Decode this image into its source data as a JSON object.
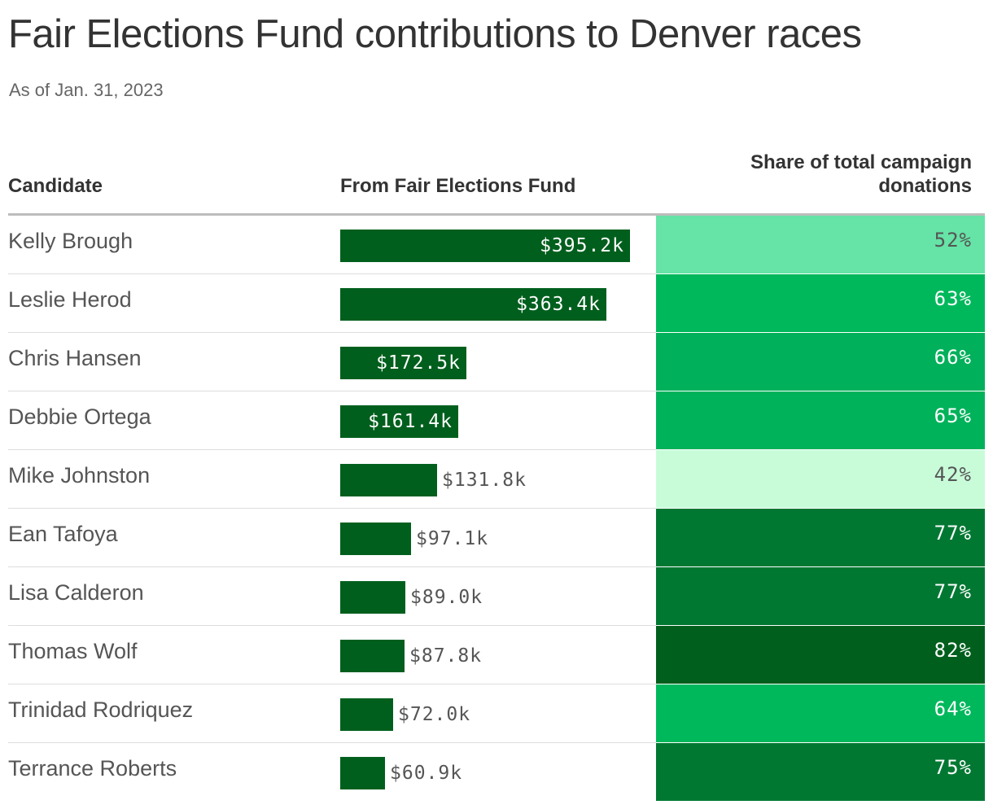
{
  "title": "Fair Elections Fund contributions to Denver races",
  "subtitle": "As of Jan. 31, 2023",
  "columns": {
    "candidate": "Candidate",
    "fund": "From Fair Elections Fund",
    "share_line1": "Share of total campaign",
    "share_line2": "donations"
  },
  "chart_data": {
    "type": "table",
    "title": "Fair Elections Fund contributions to Denver races",
    "subtitle": "As of Jan. 31, 2023",
    "columns": [
      "Candidate",
      "From Fair Elections Fund",
      "Share of total campaign donations"
    ],
    "bar_color": "#005f1d",
    "rows": [
      {
        "candidate": "Kelly Brough",
        "fund": 395.2,
        "fund_label": "$395.2k",
        "share": 52,
        "share_label": "52%",
        "share_color": "#66e3a6",
        "share_text_color": "#555555"
      },
      {
        "candidate": "Leslie Herod",
        "fund": 363.4,
        "fund_label": "$363.4k",
        "share": 63,
        "share_label": "63%",
        "share_color": "#00b85c",
        "share_text_color": "#ffffff"
      },
      {
        "candidate": "Chris Hansen",
        "fund": 172.5,
        "fund_label": "$172.5k",
        "share": 66,
        "share_label": "66%",
        "share_color": "#00b05a",
        "share_text_color": "#ffffff"
      },
      {
        "candidate": "Debbie Ortega",
        "fund": 161.4,
        "fund_label": "$161.4k",
        "share": 65,
        "share_label": "65%",
        "share_color": "#00b25a",
        "share_text_color": "#ffffff"
      },
      {
        "candidate": "Mike Johnston",
        "fund": 131.8,
        "fund_label": "$131.8k",
        "share": 42,
        "share_label": "42%",
        "share_color": "#c8fcd9",
        "share_text_color": "#555555"
      },
      {
        "candidate": "Ean Tafoya",
        "fund": 97.1,
        "fund_label": "$97.1k",
        "share": 77,
        "share_label": "77%",
        "share_color": "#007832",
        "share_text_color": "#ffffff"
      },
      {
        "candidate": "Lisa Calderon",
        "fund": 89.0,
        "fund_label": "$89.0k",
        "share": 77,
        "share_label": "77%",
        "share_color": "#007832",
        "share_text_color": "#ffffff"
      },
      {
        "candidate": "Thomas Wolf",
        "fund": 87.8,
        "fund_label": "$87.8k",
        "share": 82,
        "share_label": "82%",
        "share_color": "#005f1d",
        "share_text_color": "#ffffff"
      },
      {
        "candidate": "Trinidad Rodriquez",
        "fund": 72.0,
        "fund_label": "$72.0k",
        "share": 64,
        "share_label": "64%",
        "share_color": "#00b85c",
        "share_text_color": "#ffffff"
      },
      {
        "candidate": "Terrance Roberts",
        "fund": 60.9,
        "fund_label": "$60.9k",
        "share": 75,
        "share_label": "75%",
        "share_color": "#007832",
        "share_text_color": "#ffffff"
      }
    ]
  }
}
